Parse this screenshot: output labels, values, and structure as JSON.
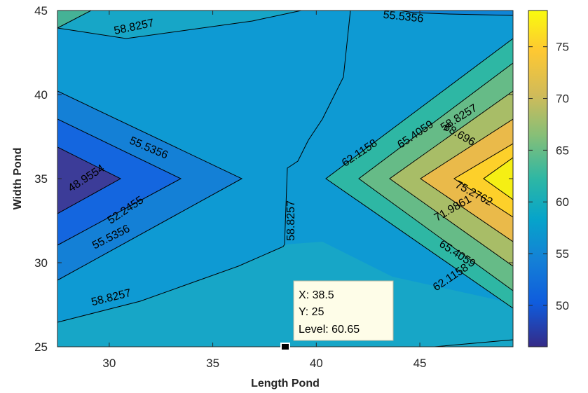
{
  "chart_data": {
    "type": "contour",
    "xlabel": "Length Pond",
    "ylabel": "Width Pond",
    "xlim": [
      27.5,
      49.5
    ],
    "ylim": [
      25,
      45
    ],
    "xticks": [
      30,
      35,
      40,
      45
    ],
    "yticks": [
      25,
      30,
      35,
      40,
      45
    ],
    "colormap": "parula",
    "colorbar": {
      "limits": [
        46,
        78.5
      ],
      "ticks": [
        50,
        55,
        60,
        65,
        70,
        75
      ]
    },
    "contour_levels": [
      "48.9554",
      "52.2455",
      "55.5356",
      "58.8257",
      "62.1158",
      "65.4059",
      "68.696",
      "71.9861",
      "75.2762"
    ],
    "contour_labels": [
      {
        "text": "48.9554",
        "x": 28.9,
        "y": 35.0
      },
      {
        "text": "52.2455",
        "x": 30.8,
        "y": 33.1
      },
      {
        "text": "55.5356",
        "x": 30.1,
        "y": 31.5
      },
      {
        "text": "55.5356",
        "x": 31.9,
        "y": 36.8
      },
      {
        "text": "55.5356",
        "x": 44.2,
        "y": 44.6
      },
      {
        "text": "58.8257",
        "x": 31.2,
        "y": 44.0
      },
      {
        "text": "58.8257",
        "x": 30.1,
        "y": 27.9
      },
      {
        "text": "58.8257",
        "x": 38.8,
        "y": 32.5
      },
      {
        "text": "58.8257",
        "x": 46.9,
        "y": 38.6
      },
      {
        "text": "62.1158",
        "x": 42.1,
        "y": 36.5
      },
      {
        "text": "62.1158",
        "x": 46.5,
        "y": 29.1
      },
      {
        "text": "65.4059",
        "x": 44.8,
        "y": 37.6
      },
      {
        "text": "65.4059",
        "x": 46.8,
        "y": 30.5
      },
      {
        "text": "68.696",
        "x": 46.9,
        "y": 37.6
      },
      {
        "text": "71.9861",
        "x": 46.6,
        "y": 33.2
      },
      {
        "text": "75.2762",
        "x": 47.6,
        "y": 34.1
      }
    ],
    "datatip": {
      "x_label": "X: 38.5",
      "y_label": "Y: 25",
      "level_label": "Level: 60.65",
      "x": 38.5,
      "y": 25
    }
  }
}
